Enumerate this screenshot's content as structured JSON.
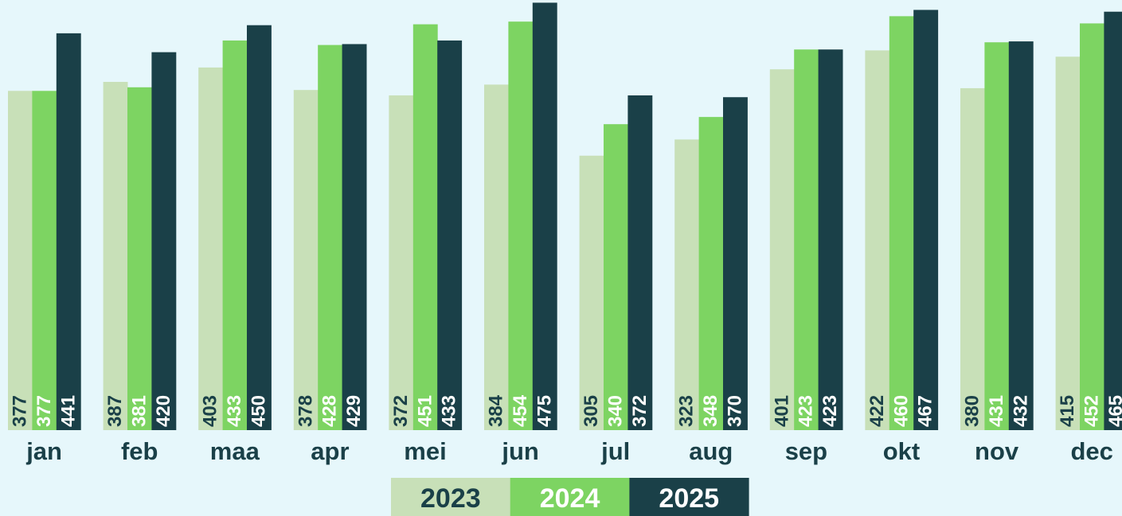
{
  "chart_data": {
    "type": "bar",
    "categories": [
      "jan",
      "feb",
      "maa",
      "apr",
      "mei",
      "jun",
      "jul",
      "aug",
      "sep",
      "okt",
      "nov",
      "dec"
    ],
    "series": [
      {
        "name": "2023",
        "color": "#c8e0b8",
        "values": [
          377,
          387,
          403,
          378,
          372,
          384,
          305,
          323,
          401,
          422,
          380,
          415
        ]
      },
      {
        "name": "2024",
        "color": "#7dd462",
        "values": [
          377,
          381,
          433,
          428,
          451,
          454,
          340,
          348,
          423,
          460,
          431,
          452
        ]
      },
      {
        "name": "2025",
        "color": "#1a4048",
        "values": [
          441,
          420,
          450,
          429,
          433,
          475,
          372,
          370,
          423,
          467,
          432,
          465
        ]
      }
    ],
    "ylim": [
      0,
      478
    ]
  }
}
